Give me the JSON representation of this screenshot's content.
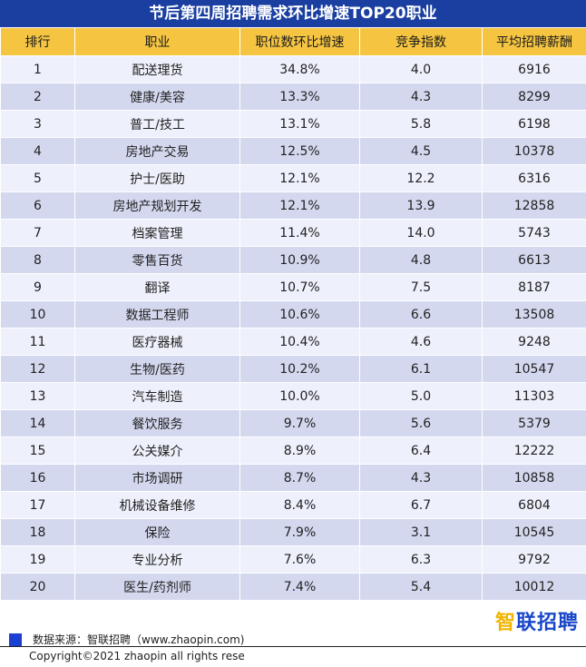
{
  "title": "节后第四周招聘需求环比增速TOP20职业",
  "headers": [
    "排行",
    "职业",
    "职位数环比增速",
    "竞争指数",
    "平均招聘薪酬"
  ],
  "rows": [
    [
      "1",
      "配送理货",
      "34.8%",
      "4.0",
      "6916"
    ],
    [
      "2",
      "健康/美容",
      "13.3%",
      "4.3",
      "8299"
    ],
    [
      "3",
      "普工/技工",
      "13.1%",
      "5.8",
      "6198"
    ],
    [
      "4",
      "房地产交易",
      "12.5%",
      "4.5",
      "10378"
    ],
    [
      "5",
      "护士/医助",
      "12.1%",
      "12.2",
      "6316"
    ],
    [
      "6",
      "房地产规划开发",
      "12.1%",
      "13.9",
      "12858"
    ],
    [
      "7",
      "档案管理",
      "11.4%",
      "14.0",
      "5743"
    ],
    [
      "8",
      "零售百货",
      "10.9%",
      "4.8",
      "6613"
    ],
    [
      "9",
      "翻译",
      "10.7%",
      "7.5",
      "8187"
    ],
    [
      "10",
      "数据工程师",
      "10.6%",
      "6.6",
      "13508"
    ],
    [
      "11",
      "医疗器械",
      "10.4%",
      "4.6",
      "9248"
    ],
    [
      "12",
      "生物/医药",
      "10.2%",
      "6.1",
      "10547"
    ],
    [
      "13",
      "汽车制造",
      "10.0%",
      "5.0",
      "11303"
    ],
    [
      "14",
      "餐饮服务",
      "9.7%",
      "5.6",
      "5379"
    ],
    [
      "15",
      "公关媒介",
      "8.9%",
      "6.4",
      "12222"
    ],
    [
      "16",
      "市场调研",
      "8.7%",
      "4.3",
      "10858"
    ],
    [
      "17",
      "机械设备维修",
      "8.4%",
      "6.7",
      "6804"
    ],
    [
      "18",
      "保险",
      "7.9%",
      "3.1",
      "10545"
    ],
    [
      "19",
      "专业分析",
      "7.6%",
      "6.3",
      "9792"
    ],
    [
      "20",
      "医生/药剂师",
      "7.4%",
      "5.4",
      "10012"
    ]
  ],
  "logo": {
    "first": "智",
    "rest": "联招聘"
  },
  "source_text": "数据来源：智联招聘（www.zhaopin.com)",
  "copyright": "Copyright©2021 zhaopin all rights rese",
  "colors": {
    "title_bg": "#1b3fa0",
    "header_bg": "#f5c542",
    "row_light": "#eef0fb",
    "row_dark": "#d4d8ef",
    "brand_blue": "#1947c9",
    "brand_yellow": "#f0b400"
  }
}
